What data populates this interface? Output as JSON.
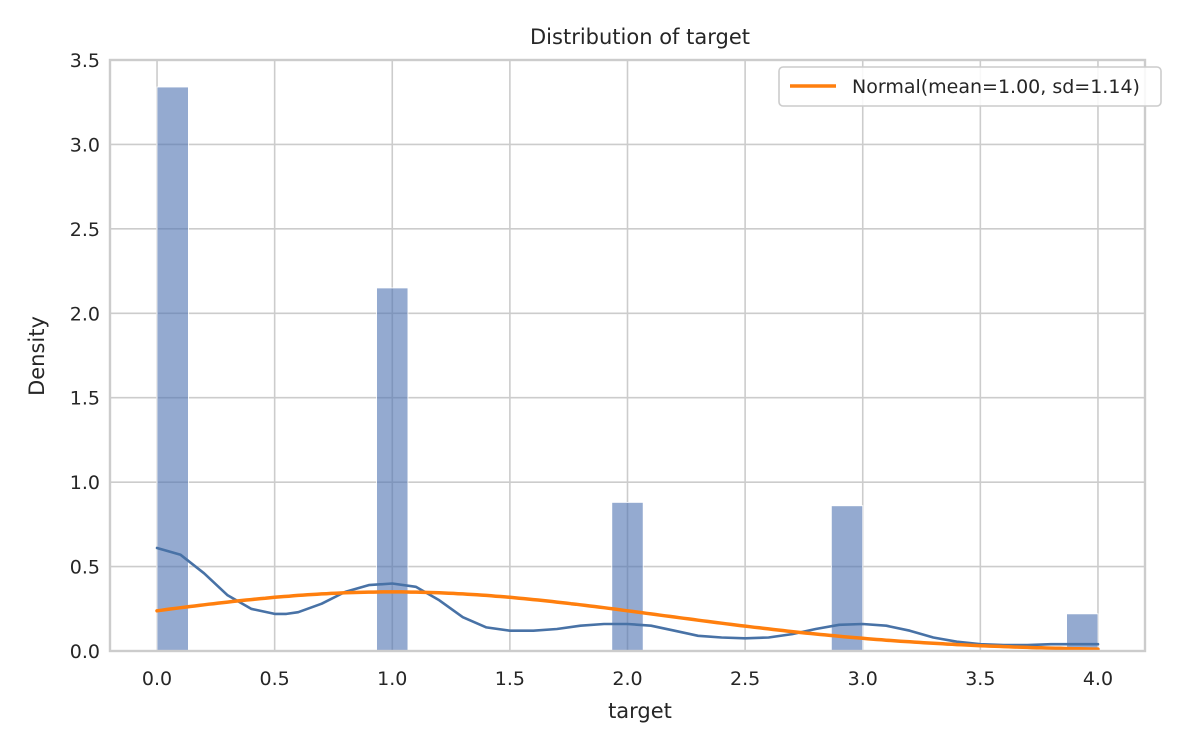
{
  "chart_data": {
    "type": "bar",
    "title": "Distribution of target",
    "xlabel": "target",
    "ylabel": "Density",
    "xlim": [
      -0.2,
      4.2
    ],
    "ylim": [
      0,
      3.5
    ],
    "xticks": [
      "0.0",
      "0.5",
      "1.0",
      "1.5",
      "2.0",
      "2.5",
      "3.0",
      "3.5",
      "4.0"
    ],
    "yticks": [
      "0.0",
      "0.5",
      "1.0",
      "1.5",
      "2.0",
      "2.5",
      "3.0",
      "3.5"
    ],
    "grid": true,
    "bar_width": 0.1333,
    "histogram": {
      "x_start": [
        0.0,
        0.9333,
        1.9333,
        2.8667,
        3.8667
      ],
      "density": [
        3.34,
        2.15,
        0.88,
        0.86,
        0.22
      ],
      "color": "#4c72b0"
    },
    "kde": {
      "color": "#4872a6",
      "x": [
        0.0,
        0.1,
        0.2,
        0.3,
        0.4,
        0.5,
        0.55,
        0.6,
        0.7,
        0.8,
        0.9,
        1.0,
        1.1,
        1.2,
        1.3,
        1.4,
        1.5,
        1.6,
        1.7,
        1.8,
        1.9,
        2.0,
        2.1,
        2.2,
        2.3,
        2.4,
        2.5,
        2.6,
        2.7,
        2.8,
        2.9,
        3.0,
        3.1,
        3.2,
        3.3,
        3.4,
        3.5,
        3.6,
        3.7,
        3.8,
        3.9,
        4.0
      ],
      "y": [
        0.61,
        0.57,
        0.46,
        0.33,
        0.25,
        0.22,
        0.22,
        0.23,
        0.28,
        0.35,
        0.39,
        0.4,
        0.38,
        0.3,
        0.2,
        0.14,
        0.12,
        0.12,
        0.13,
        0.15,
        0.16,
        0.16,
        0.15,
        0.12,
        0.09,
        0.08,
        0.075,
        0.08,
        0.1,
        0.13,
        0.155,
        0.16,
        0.15,
        0.12,
        0.08,
        0.055,
        0.04,
        0.035,
        0.035,
        0.04,
        0.04,
        0.04
      ]
    },
    "normal": {
      "name": "Normal(mean=1.00, sd=1.14)",
      "color": "#ff7f0e",
      "mean": 1.0,
      "sd": 1.14
    },
    "legend_position": "top-right"
  }
}
